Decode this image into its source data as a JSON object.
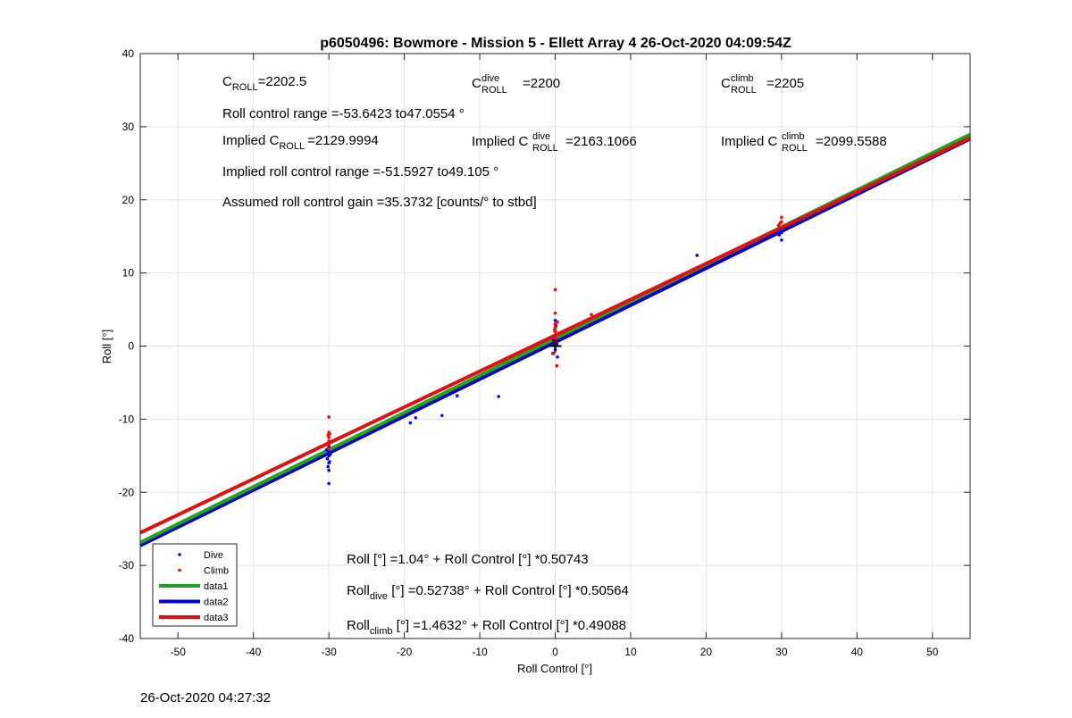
{
  "chart_data": {
    "type": "scatter",
    "title": "p6050496: Bowmore - Mission 5 - Ellett Array 4 26-Oct-2020 04:09:54Z",
    "xlabel": "Roll Control [°]",
    "ylabel": "Roll [°]",
    "xlim": [
      -55,
      55
    ],
    "ylim": [
      -40,
      40
    ],
    "xticks": [
      -50,
      -40,
      -30,
      -20,
      -10,
      0,
      10,
      20,
      30,
      40,
      50
    ],
    "yticks": [
      -40,
      -30,
      -20,
      -10,
      0,
      10,
      20,
      30,
      40
    ],
    "xtick_labels": [
      "-50",
      "-40",
      "-30",
      "-20",
      "-10",
      "0",
      "10",
      "20",
      "30",
      "40",
      "50"
    ],
    "ytick_labels": [
      "-40",
      "-30",
      "-20",
      "-10",
      "0",
      "10",
      "20",
      "30",
      "40"
    ],
    "grid": true,
    "legend_placement": "bottom-left",
    "colors": {
      "dive": "#0000ff",
      "climb": "#ff0000",
      "data1": "#1fa51f",
      "data2": "#0000c8",
      "data3": "#e01010",
      "crosshair": "#000000"
    },
    "series": [
      {
        "name": "Dive",
        "kind": "points",
        "color": "#0000ff",
        "points": [
          [
            -30,
            -15
          ],
          [
            -30,
            -14.5
          ],
          [
            -30.2,
            -15.4
          ],
          [
            -29.8,
            -14.8
          ],
          [
            -30,
            -16
          ],
          [
            -30.1,
            -16.5
          ],
          [
            -30,
            -17
          ],
          [
            -29.9,
            -15.8
          ],
          [
            -30,
            -18.8
          ],
          [
            -30.3,
            -14.2
          ],
          [
            -30,
            -13.8
          ],
          [
            -19.2,
            -10.5
          ],
          [
            -18.5,
            -9.8
          ],
          [
            -15,
            -9.5
          ],
          [
            -13,
            -6.8
          ],
          [
            -7.5,
            -6.9
          ],
          [
            0,
            0
          ],
          [
            0,
            0.5
          ],
          [
            0,
            1
          ],
          [
            0,
            1.5
          ],
          [
            0,
            2
          ],
          [
            0,
            2.5
          ],
          [
            0,
            3
          ],
          [
            0,
            3.5
          ],
          [
            -0.3,
            -1
          ],
          [
            0.3,
            -1.5
          ],
          [
            0,
            -0.5
          ],
          [
            0.2,
            0.3
          ],
          [
            -0.2,
            0.8
          ],
          [
            0.1,
            2.8
          ],
          [
            18.8,
            12.4
          ],
          [
            29.7,
            15.2
          ],
          [
            30,
            14.5
          ],
          [
            29.9,
            15.8
          ],
          [
            30,
            15.5
          ]
        ]
      },
      {
        "name": "Climb",
        "kind": "points",
        "color": "#ff0000",
        "points": [
          [
            -30,
            -12.5
          ],
          [
            -30,
            -13
          ],
          [
            -30,
            -13.5
          ],
          [
            -30.1,
            -12.2
          ],
          [
            -29.9,
            -12
          ],
          [
            -30,
            -11.8
          ],
          [
            -30,
            -9.7
          ],
          [
            -30.1,
            -14
          ],
          [
            -29.9,
            -13.2
          ],
          [
            0,
            1
          ],
          [
            0,
            1.5
          ],
          [
            0,
            2
          ],
          [
            0,
            2.5
          ],
          [
            0,
            3
          ],
          [
            0,
            4.5
          ],
          [
            0,
            7.7
          ],
          [
            0.2,
            -2.7
          ],
          [
            -0.2,
            -1
          ],
          [
            0,
            0.5
          ],
          [
            0.3,
            3.3
          ],
          [
            -0.1,
            2.2
          ],
          [
            4.8,
            4.3
          ],
          [
            29.6,
            16.5
          ],
          [
            30,
            17
          ],
          [
            29.8,
            16.8
          ],
          [
            30,
            17.6
          ],
          [
            30.1,
            16.2
          ]
        ]
      },
      {
        "name": "data1",
        "kind": "line",
        "color": "#1fa51f",
        "intercept": 1.04,
        "slope": 0.50743
      },
      {
        "name": "data2",
        "kind": "line",
        "color": "#0000c8",
        "intercept": 0.52738,
        "slope": 0.50564
      },
      {
        "name": "data3",
        "kind": "line",
        "color": "#e01010",
        "intercept": 1.4632,
        "slope": 0.49088
      }
    ],
    "annotations": {
      "c_roll": {
        "main": "C",
        "sub": "ROLL",
        "value": "=2202.5"
      },
      "c_roll_dive": {
        "main": "C",
        "sup": "dive",
        "sub": "ROLL",
        "value": "=2200"
      },
      "c_roll_climb": {
        "main": "C",
        "sup": "climb",
        "sub": "ROLL",
        "value": "=2205"
      },
      "roll_control_range": "Roll control range =-53.6423 to47.0554 °",
      "implied_c_roll": {
        "prefix": "Implied C",
        "sub": "ROLL",
        "value": "=2129.9994"
      },
      "implied_c_roll_dive": {
        "prefix": "Implied C",
        "sup": "dive",
        "sub": "ROLL",
        "value": "=2163.1066"
      },
      "implied_c_roll_climb": {
        "prefix": "Implied C",
        "sup": "climb",
        "sub": "ROLL",
        "value": "=2099.5588"
      },
      "implied_range": "Implied roll control range =-51.5927 to49.105 °",
      "gain": "Assumed roll control gain =35.3732 [counts/° to stbd]",
      "fit_all": "Roll [°] =1.04° + Roll Control [°] *0.50743",
      "fit_dive": {
        "main": "Roll",
        "sub": "dive",
        "rest": " [°] =0.52738° + Roll Control [°] *0.50564"
      },
      "fit_climb": {
        "main": "Roll",
        "sub": "climb",
        "rest": " [°] =1.4632° + Roll Control [°] *0.49088"
      }
    },
    "legend": [
      "Dive",
      "Climb",
      "data1",
      "data2",
      "data3"
    ]
  },
  "footer": {
    "timestamp": "26-Oct-2020 04:27:32"
  }
}
